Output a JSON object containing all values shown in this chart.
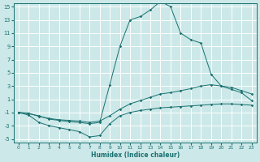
{
  "xlabel": "Humidex (Indice chaleur)",
  "x": [
    0,
    1,
    2,
    3,
    4,
    5,
    6,
    7,
    8,
    9,
    10,
    11,
    12,
    13,
    14,
    15,
    16,
    17,
    18,
    19,
    20,
    21,
    22,
    23
  ],
  "line_top": [
    -1.0,
    -1.2,
    -1.5,
    -2.0,
    -2.2,
    -2.4,
    -2.5,
    -2.7,
    -2.5,
    3.2,
    9.0,
    13.0,
    13.5,
    14.5,
    15.8,
    15.0,
    11.0,
    10.0,
    9.5,
    4.8,
    3.0,
    2.5,
    2.0,
    0.8
  ],
  "line_mid": [
    -1.0,
    -1.1,
    -1.6,
    -1.9,
    -2.1,
    -2.2,
    -2.3,
    -2.5,
    -2.3,
    -1.5,
    -0.5,
    0.3,
    0.8,
    1.3,
    1.8,
    2.0,
    2.3,
    2.6,
    3.0,
    3.2,
    3.0,
    2.8,
    2.3,
    1.8
  ],
  "line_bot": [
    -1.0,
    -1.4,
    -2.5,
    -3.0,
    -3.3,
    -3.6,
    -3.9,
    -4.7,
    -4.5,
    -2.7,
    -1.5,
    -1.0,
    -0.7,
    -0.5,
    -0.3,
    -0.2,
    -0.1,
    0.0,
    0.1,
    0.2,
    0.3,
    0.3,
    0.2,
    0.1
  ],
  "bg_color": "#cce8e8",
  "line_color": "#1a7070",
  "grid_color": "#ffffff",
  "ylim": [
    -5,
    15
  ],
  "xlim": [
    -0.5,
    23.5
  ],
  "yticks": [
    -5,
    -3,
    -1,
    1,
    3,
    5,
    7,
    9,
    11,
    13,
    15
  ],
  "xticks": [
    0,
    1,
    2,
    3,
    4,
    5,
    6,
    7,
    8,
    9,
    10,
    11,
    12,
    13,
    14,
    15,
    16,
    17,
    18,
    19,
    20,
    21,
    22,
    23
  ]
}
